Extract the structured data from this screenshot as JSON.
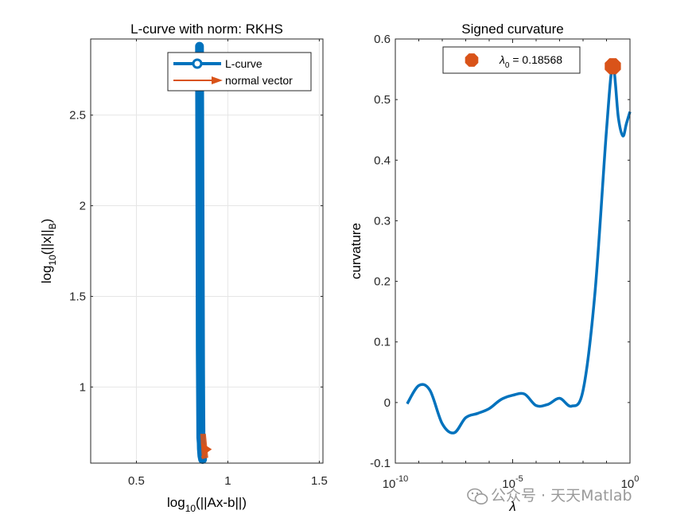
{
  "chart_data": [
    {
      "type": "line",
      "title": "L-curve with norm: RKHS",
      "xlabel": {
        "prefix": "log",
        "sub": "10",
        "rest": "(||Ax-b||)"
      },
      "ylabel": {
        "prefix": "log",
        "sub": "10",
        "mid": "(||x||",
        "sub2": "B",
        "end": ")"
      },
      "xlim": [
        0.25,
        1.52
      ],
      "ylim": [
        0.58,
        2.92
      ],
      "xticks": [
        0.5,
        1,
        1.5
      ],
      "xtick_labels": [
        "0.5",
        "1",
        "1.5"
      ],
      "yticks": [
        1,
        1.5,
        2,
        2.5
      ],
      "ytick_labels": [
        "1",
        "1.5",
        "2",
        "2.5"
      ],
      "grid": true,
      "legend_position": "top-right",
      "series": [
        {
          "name": "L-curve",
          "color": "#0072BD",
          "x": [
            0.845,
            0.846,
            0.847,
            0.848,
            0.849,
            0.85,
            0.851,
            0.852,
            0.853,
            0.855,
            0.858,
            0.862,
            0.86,
            0.856,
            0.852,
            0.849,
            0.847,
            0.845
          ],
          "y": [
            2.88,
            2.6,
            2.3,
            2.0,
            1.7,
            1.4,
            1.1,
            0.9,
            0.75,
            0.66,
            0.62,
            0.6,
            0.63,
            0.67,
            0.72,
            1.2,
            2.0,
            2.88
          ]
        },
        {
          "name": "normal vector",
          "color": "#D95319",
          "x": [
            0.858,
            0.895
          ],
          "y": [
            0.61,
            0.665
          ]
        }
      ]
    },
    {
      "type": "line",
      "title": "Signed curvature",
      "xlabel": "λ",
      "ylabel": "curvature",
      "xscale": "log",
      "xlim": [
        1e-10,
        1
      ],
      "ylim": [
        -0.1,
        0.6
      ],
      "xticks": [
        1e-10,
        1e-05,
        1
      ],
      "xtick_labels": [
        {
          "base": "10",
          "exp": "-10"
        },
        {
          "base": "10",
          "exp": "-5"
        },
        {
          "base": "10",
          "exp": "0"
        }
      ],
      "yticks": [
        -0.1,
        0,
        0.1,
        0.2,
        0.3,
        0.4,
        0.5,
        0.6
      ],
      "ytick_labels": [
        "-0.1",
        "0",
        "0.1",
        "0.2",
        "0.3",
        "0.4",
        "0.5",
        "0.6"
      ],
      "grid": false,
      "legend_position": "top-right",
      "legend_label": {
        "symbol": "λ",
        "sub": "0",
        "rest": " = 0.18568"
      },
      "series": [
        {
          "color": "#0072BD",
          "x": [
            3.2e-10,
            1e-09,
            3e-09,
            1e-08,
            3.2e-08,
            1e-07,
            3.2e-07,
            1e-06,
            3.2e-06,
            1e-05,
            3.2e-05,
            0.0001,
            0.00032,
            0.001,
            0.0032,
            0.01,
            0.032,
            0.1,
            0.18568,
            0.32,
            0.5,
            0.7,
            1
          ],
          "y": [
            -0.002,
            0.028,
            0.02,
            -0.035,
            -0.05,
            -0.025,
            -0.018,
            -0.01,
            0.005,
            0.012,
            0.014,
            -0.005,
            -0.003,
            0.007,
            -0.006,
            0.02,
            0.18,
            0.45,
            0.555,
            0.47,
            0.44,
            0.46,
            0.48
          ]
        }
      ],
      "markers": [
        {
          "name": "λ0 = 0.18568",
          "x": 0.18568,
          "y": 0.555,
          "color": "#D95319"
        }
      ]
    }
  ],
  "watermark": {
    "text": "公众号 · 天天Matlab",
    "icon": "wechat-icon"
  }
}
